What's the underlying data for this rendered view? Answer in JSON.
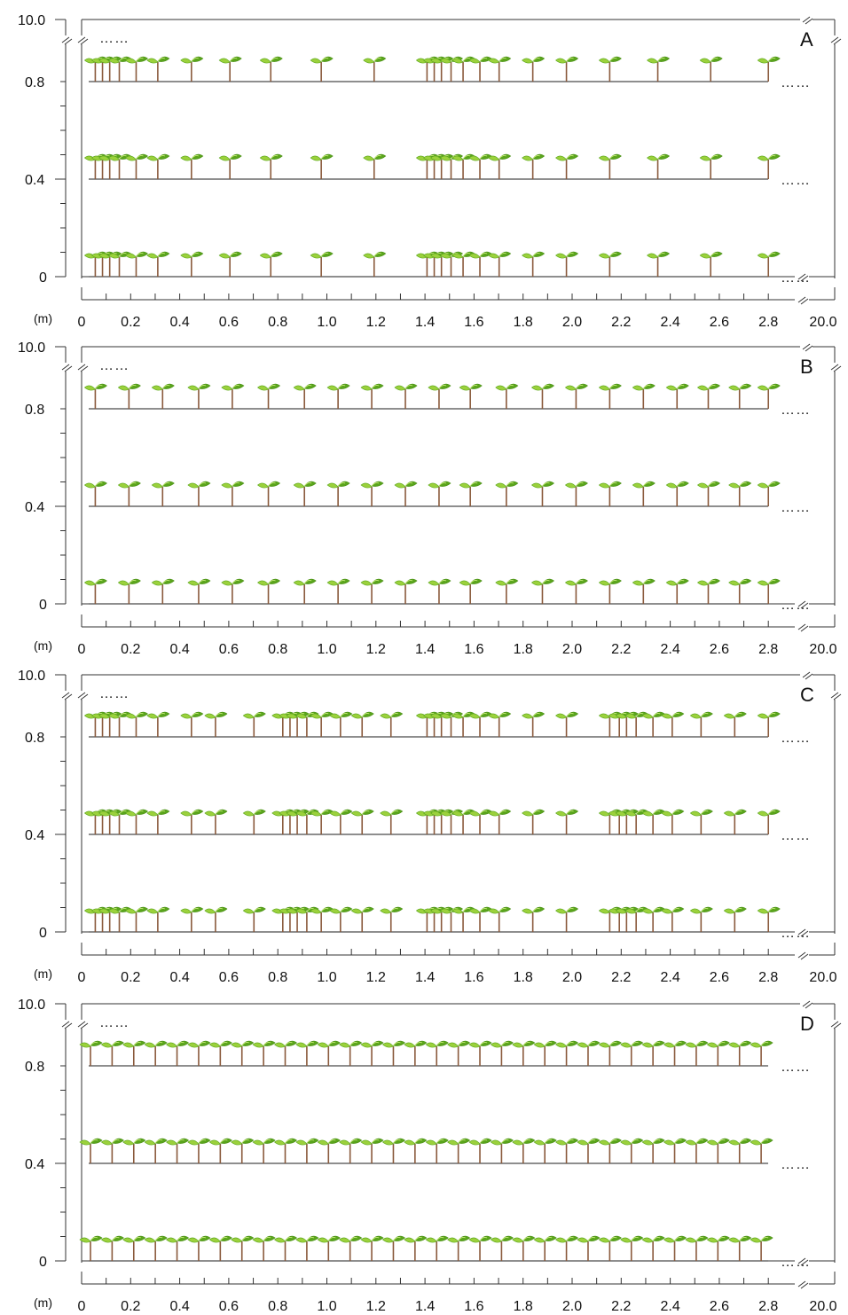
{
  "panels": [
    {
      "letter": "A",
      "plants": [
        0.02,
        0.05,
        0.08,
        0.12,
        0.19,
        0.28,
        0.42,
        0.58,
        0.75,
        0.96,
        1.18,
        1.4,
        1.43,
        1.46,
        1.5,
        1.55,
        1.62,
        1.7,
        1.84,
        1.98,
        2.16,
        2.36,
        2.58,
        2.82
      ]
    },
    {
      "letter": "B",
      "plants": [
        0.02,
        0.16,
        0.3,
        0.45,
        0.59,
        0.74,
        0.89,
        1.03,
        1.17,
        1.31,
        1.45,
        1.58,
        1.73,
        1.88,
        2.02,
        2.16,
        2.3,
        2.44,
        2.57,
        2.7,
        2.82
      ]
    },
    {
      "letter": "C",
      "plants": [
        0.02,
        0.05,
        0.08,
        0.12,
        0.19,
        0.28,
        0.42,
        0.52,
        0.68,
        0.8,
        0.83,
        0.86,
        0.9,
        0.96,
        1.04,
        1.13,
        1.25,
        1.4,
        1.43,
        1.46,
        1.5,
        1.55,
        1.62,
        1.7,
        1.84,
        1.98,
        2.16,
        2.2,
        2.23,
        2.27,
        2.34,
        2.42,
        2.54,
        2.68,
        2.82
      ]
    },
    {
      "letter": "D",
      "plants": [
        0.0,
        0.09,
        0.18,
        0.27,
        0.36,
        0.45,
        0.54,
        0.63,
        0.72,
        0.81,
        0.9,
        0.99,
        1.08,
        1.17,
        1.26,
        1.35,
        1.44,
        1.53,
        1.62,
        1.71,
        1.8,
        1.89,
        1.98,
        2.07,
        2.16,
        2.25,
        2.34,
        2.43,
        2.52,
        2.61,
        2.7,
        2.79
      ]
    }
  ],
  "y_axis": {
    "ticks": [
      "0",
      "0.4",
      "0.8"
    ],
    "top_label": "10.0"
  },
  "x_axis": {
    "unit": "(m)",
    "ticks": [
      "0",
      "0.2",
      "0.4",
      "0.6",
      "0.8",
      "1.0",
      "1.2",
      "1.4",
      "1.6",
      "1.8",
      "2.0",
      "2.2",
      "2.4",
      "2.6",
      "2.8"
    ],
    "end_label": "20.0"
  },
  "row_values": [
    0,
    0.4,
    0.8
  ],
  "ellipsis": "……",
  "colors": {
    "leaf_light": "#9bd13c",
    "leaf_dark": "#5aa51c",
    "stem": "#8a5a3c"
  }
}
